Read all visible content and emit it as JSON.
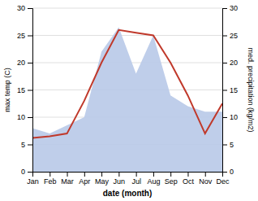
{
  "chart_data": {
    "type": "line",
    "categories": [
      "Jan",
      "Feb",
      "Mar",
      "Apr",
      "May",
      "Jun",
      "Jul",
      "Aug",
      "Sep",
      "Oct",
      "Nov",
      "Dec"
    ],
    "xlabel": "date (month)",
    "ylabel": "max temp (C)",
    "y2label": "med. precipitation (kg/m2)",
    "series": [
      {
        "type": "area",
        "axis": "y2",
        "color": "#b8c9e8",
        "values": [
          8.0,
          7.0,
          8.5,
          10.0,
          22.0,
          26.5,
          18.0,
          25.0,
          14.0,
          12.0,
          11.0,
          11.0
        ]
      },
      {
        "type": "line",
        "color": "#c0392b",
        "values": [
          6.2,
          6.5,
          7.0,
          13.0,
          20.0,
          26.0,
          25.5,
          25.0,
          20.0,
          14.0,
          7.0,
          12.5
        ]
      }
    ],
    "ylim": [
      0,
      30
    ],
    "yticks": [
      0,
      5,
      10,
      15,
      20,
      25,
      30
    ],
    "y2lim": [
      0,
      30
    ],
    "y2ticks": [
      0,
      5,
      10,
      15,
      20,
      25,
      30
    ],
    "grid": true
  }
}
